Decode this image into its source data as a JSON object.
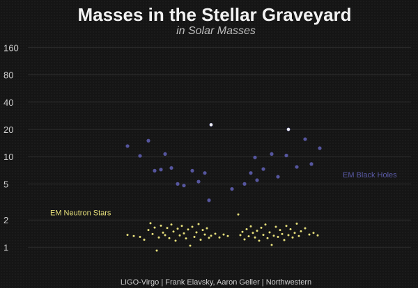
{
  "chart_data": {
    "type": "scatter",
    "title": "Masses in the Stellar Graveyard",
    "subtitle": "in Solar Masses",
    "credit": "LIGO-Virgo | Frank Elavsky, Aaron Geller | Northwestern",
    "y_scale": "log",
    "ylim": [
      0.8,
      170
    ],
    "y_ticks": [
      "1",
      "2",
      "5",
      "10",
      "20",
      "40",
      "80",
      "160"
    ],
    "y_tick_values": [
      1,
      2,
      5,
      10,
      20,
      40,
      80,
      160
    ],
    "grid": true,
    "colors": {
      "black_hole": "#5a5aa6",
      "neutron_star": "#e6df7a",
      "merger_remnant": "#eeeeee"
    },
    "annotations": [
      {
        "text": "EM Black Holes",
        "series": "black_hole",
        "x": 0.82,
        "y": 5.9
      },
      {
        "text": "EM Neutron Stars",
        "series": "neutron_star",
        "x": 0.12,
        "y": 2.25
      }
    ],
    "series": [
      {
        "key": "black_hole",
        "x": [
          0.305,
          0.335,
          0.355,
          0.37,
          0.385,
          0.395,
          0.41,
          0.425,
          0.44,
          0.46,
          0.475,
          0.49,
          0.5,
          0.505,
          0.555,
          0.585,
          0.6,
          0.61,
          0.615,
          0.63,
          0.65,
          0.665,
          0.685,
          0.69,
          0.71,
          0.73,
          0.745,
          0.765
        ],
        "y": [
          13.1,
          10.2,
          15.0,
          7.0,
          7.2,
          10.7,
          7.5,
          5.0,
          4.8,
          7.0,
          5.3,
          6.6,
          3.3,
          22.5,
          4.4,
          5.0,
          6.6,
          9.8,
          5.5,
          7.3,
          10.7,
          6.0,
          10.3,
          20.0,
          7.7,
          15.6,
          8.3,
          12.4
        ]
      },
      {
        "key": "neutron_star",
        "x": [
          0.305,
          0.32,
          0.335,
          0.345,
          0.355,
          0.36,
          0.365,
          0.37,
          0.375,
          0.38,
          0.385,
          0.39,
          0.395,
          0.4,
          0.405,
          0.41,
          0.415,
          0.42,
          0.425,
          0.43,
          0.435,
          0.44,
          0.445,
          0.45,
          0.455,
          0.46,
          0.465,
          0.47,
          0.475,
          0.48,
          0.485,
          0.49,
          0.495,
          0.5,
          0.505,
          0.515,
          0.525,
          0.535,
          0.545,
          0.57,
          0.575,
          0.58,
          0.585,
          0.59,
          0.595,
          0.6,
          0.605,
          0.61,
          0.615,
          0.62,
          0.625,
          0.63,
          0.635,
          0.64,
          0.645,
          0.65,
          0.655,
          0.66,
          0.665,
          0.67,
          0.675,
          0.68,
          0.685,
          0.69,
          0.695,
          0.7,
          0.705,
          0.71,
          0.715,
          0.72,
          0.73,
          0.74,
          0.75,
          0.76
        ],
        "y": [
          1.37,
          1.33,
          1.3,
          1.21,
          1.55,
          1.84,
          1.4,
          1.65,
          0.92,
          1.28,
          1.73,
          1.45,
          1.36,
          1.63,
          1.26,
          1.78,
          1.49,
          1.18,
          1.6,
          1.35,
          1.72,
          1.42,
          1.25,
          1.57,
          1.04,
          1.68,
          1.3,
          1.46,
          1.8,
          1.21,
          1.55,
          1.38,
          1.62,
          1.27,
          1.34,
          1.41,
          1.28,
          1.38,
          1.33,
          2.3,
          1.36,
          1.48,
          1.22,
          1.58,
          1.32,
          1.7,
          1.44,
          1.28,
          1.52,
          1.18,
          1.64,
          1.37,
          1.78,
          1.26,
          1.46,
          1.06,
          1.34,
          1.68,
          1.3,
          1.55,
          1.4,
          1.2,
          1.72,
          1.36,
          1.58,
          1.28,
          1.44,
          1.82,
          1.33,
          1.5,
          1.62,
          1.38,
          1.44,
          1.35
        ]
      },
      {
        "key": "merger_remnant",
        "x": [
          0.505,
          0.69
        ],
        "y": [
          22.5,
          20.0
        ]
      }
    ]
  }
}
